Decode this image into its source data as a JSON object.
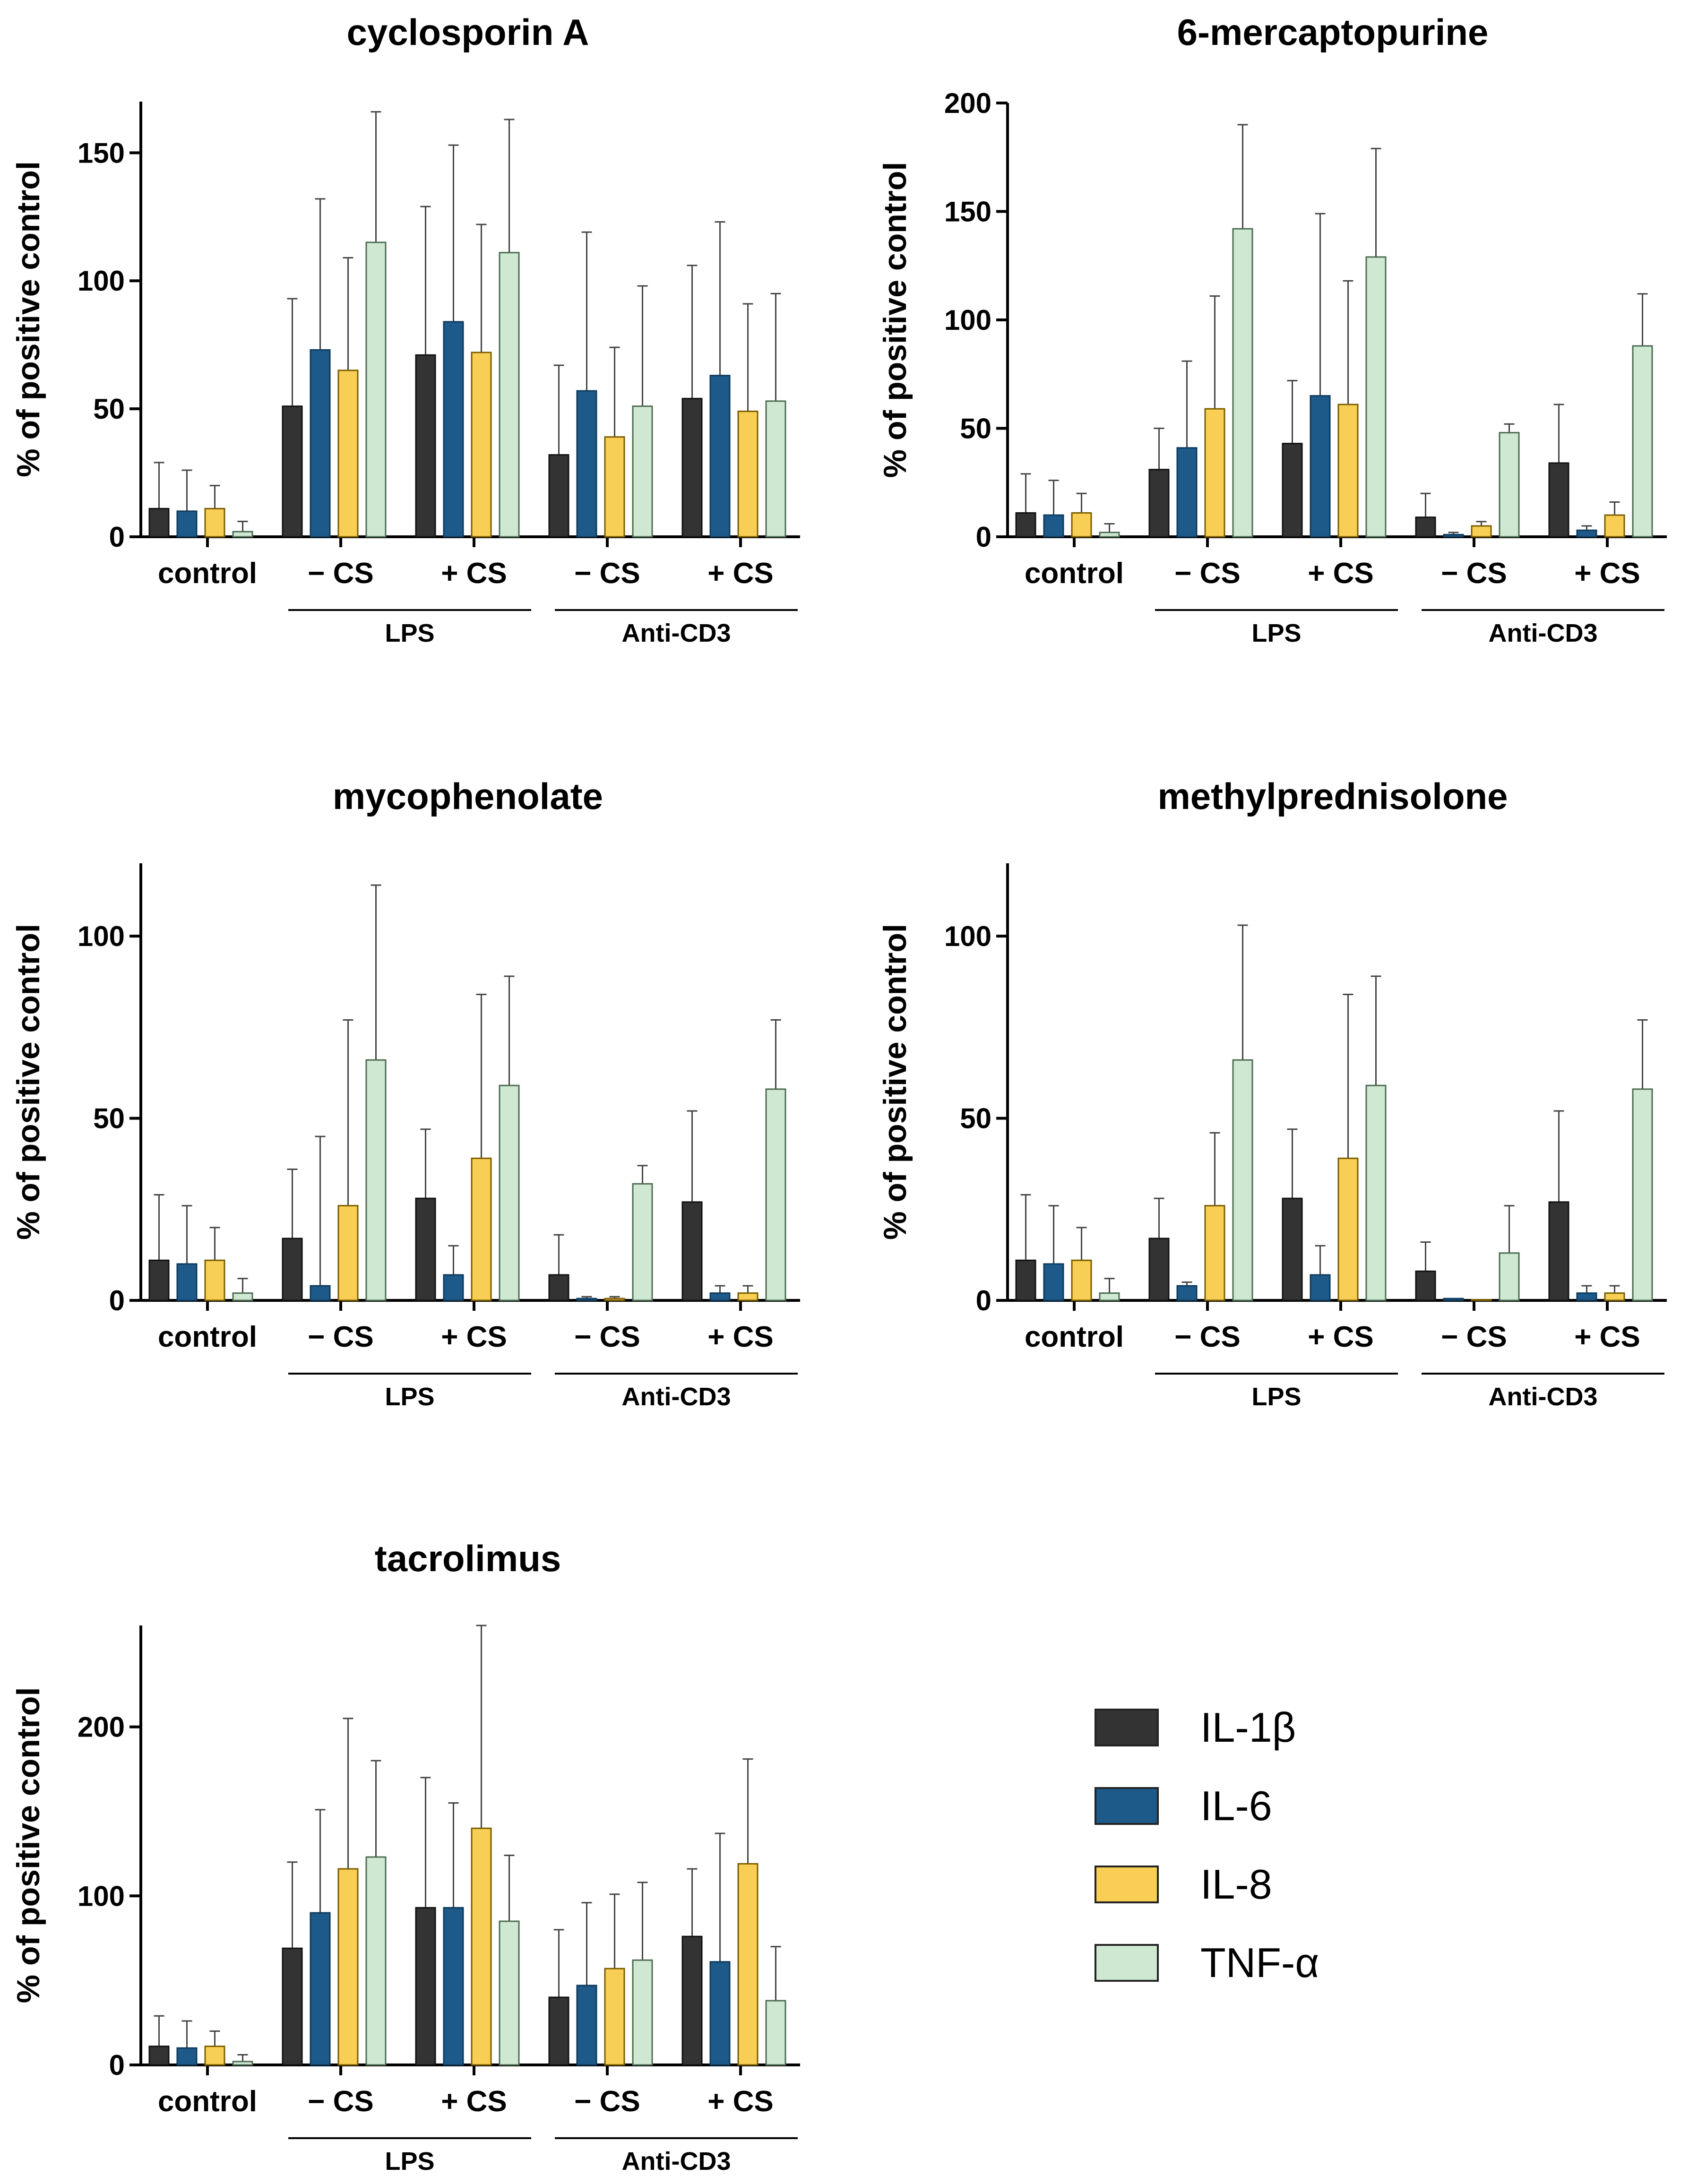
{
  "legend": {
    "items": [
      {
        "label": "IL-1β",
        "color": "#333333"
      },
      {
        "label": "IL-6",
        "color": "#1d5a8a"
      },
      {
        "label": "IL-8",
        "color": "#f8cf54"
      },
      {
        "label": "TNF-α",
        "color": "#cfe8d2"
      }
    ]
  },
  "chart_data": [
    {
      "type": "bar",
      "title": "cyclosporin  A",
      "ylabel": "% of positive control",
      "ylim": [
        0,
        170
      ],
      "yticks": [
        0,
        50,
        100,
        150
      ],
      "categories": [
        "control",
        "− CS",
        "+ CS",
        "− CS",
        "+ CS"
      ],
      "groups": [
        {
          "label": "LPS",
          "categories": [
            1,
            2
          ]
        },
        {
          "label": "Anti-CD3",
          "categories": [
            3,
            4
          ]
        }
      ],
      "series": [
        {
          "name": "IL-1β",
          "values": [
            11,
            51,
            71,
            32,
            54
          ],
          "errors": [
            18,
            42,
            58,
            35,
            52
          ]
        },
        {
          "name": "IL-6",
          "values": [
            10,
            73,
            84,
            57,
            63
          ],
          "errors": [
            16,
            59,
            69,
            62,
            60
          ]
        },
        {
          "name": "IL-8",
          "values": [
            11,
            65,
            72,
            39,
            49
          ],
          "errors": [
            9,
            44,
            50,
            35,
            42
          ]
        },
        {
          "name": "TNF-α",
          "values": [
            2,
            115,
            111,
            51,
            53
          ],
          "errors": [
            4,
            51,
            52,
            47,
            42
          ]
        }
      ]
    },
    {
      "type": "bar",
      "title": "6-mercaptopurine",
      "ylabel": "% of positive control",
      "ylim": [
        0,
        200
      ],
      "yticks": [
        0,
        50,
        100,
        150,
        200
      ],
      "categories": [
        "control",
        "− CS",
        "+ CS",
        "− CS",
        "+ CS"
      ],
      "groups": [
        {
          "label": "LPS",
          "categories": [
            1,
            2
          ]
        },
        {
          "label": "Anti-CD3",
          "categories": [
            3,
            4
          ]
        }
      ],
      "series": [
        {
          "name": "IL-1β",
          "values": [
            11,
            31,
            43,
            9,
            34
          ],
          "errors": [
            18,
            19,
            29,
            11,
            27
          ]
        },
        {
          "name": "IL-6",
          "values": [
            10,
            41,
            65,
            1,
            3
          ],
          "errors": [
            16,
            40,
            84,
            1,
            2
          ]
        },
        {
          "name": "IL-8",
          "values": [
            11,
            59,
            61,
            5,
            10
          ],
          "errors": [
            9,
            52,
            57,
            2,
            6
          ]
        },
        {
          "name": "TNF-α",
          "values": [
            2,
            142,
            129,
            48,
            88
          ],
          "errors": [
            4,
            48,
            50,
            4,
            24
          ]
        }
      ]
    },
    {
      "type": "bar",
      "title": "mycophenolate",
      "ylabel": "% of positive control",
      "ylim": [
        0,
        120
      ],
      "yticks": [
        0,
        50,
        100
      ],
      "categories": [
        "control",
        "− CS",
        "+ CS",
        "− CS",
        "+ CS"
      ],
      "groups": [
        {
          "label": "LPS",
          "categories": [
            1,
            2
          ]
        },
        {
          "label": "Anti-CD3",
          "categories": [
            3,
            4
          ]
        }
      ],
      "series": [
        {
          "name": "IL-1β",
          "values": [
            11,
            17,
            28,
            7,
            27
          ],
          "errors": [
            18,
            19,
            19,
            11,
            25
          ]
        },
        {
          "name": "IL-6",
          "values": [
            10,
            4,
            7,
            0.5,
            2
          ],
          "errors": [
            16,
            41,
            8,
            0.5,
            2
          ]
        },
        {
          "name": "IL-8",
          "values": [
            11,
            26,
            39,
            0.5,
            2
          ],
          "errors": [
            9,
            51,
            45,
            0.5,
            2
          ]
        },
        {
          "name": "TNF-α",
          "values": [
            2,
            66,
            59,
            32,
            58
          ],
          "errors": [
            4,
            48,
            30,
            5,
            19
          ]
        }
      ]
    },
    {
      "type": "bar",
      "title": "methylprednisolone",
      "ylabel": "% of positive control",
      "ylim": [
        0,
        120
      ],
      "yticks": [
        0,
        50,
        100
      ],
      "categories": [
        "control",
        "− CS",
        "+ CS",
        "− CS",
        "+ CS"
      ],
      "groups": [
        {
          "label": "LPS",
          "categories": [
            1,
            2
          ]
        },
        {
          "label": "Anti-CD3",
          "categories": [
            3,
            4
          ]
        }
      ],
      "series": [
        {
          "name": "IL-1β",
          "values": [
            11,
            17,
            28,
            8,
            27
          ],
          "errors": [
            18,
            11,
            19,
            8,
            25
          ]
        },
        {
          "name": "IL-6",
          "values": [
            10,
            4,
            7,
            0.5,
            2
          ],
          "errors": [
            16,
            1,
            8,
            0,
            2
          ]
        },
        {
          "name": "IL-8",
          "values": [
            11,
            26,
            39,
            0,
            2
          ],
          "errors": [
            9,
            20,
            45,
            0,
            2
          ]
        },
        {
          "name": "TNF-α",
          "values": [
            2,
            66,
            59,
            13,
            58
          ],
          "errors": [
            4,
            37,
            30,
            13,
            19
          ]
        }
      ]
    },
    {
      "type": "bar",
      "title": "tacrolimus",
      "ylabel": "% of positive control",
      "ylim": [
        0,
        260
      ],
      "yticks": [
        0,
        100,
        200
      ],
      "categories": [
        "control",
        "− CS",
        "+ CS",
        "− CS",
        "+ CS"
      ],
      "groups": [
        {
          "label": "LPS",
          "categories": [
            1,
            2
          ]
        },
        {
          "label": "Anti-CD3",
          "categories": [
            3,
            4
          ]
        }
      ],
      "series": [
        {
          "name": "IL-1β",
          "values": [
            11,
            69,
            93,
            40,
            76
          ],
          "errors": [
            18,
            51,
            77,
            40,
            40
          ]
        },
        {
          "name": "IL-6",
          "values": [
            10,
            90,
            93,
            47,
            61
          ],
          "errors": [
            16,
            61,
            62,
            49,
            76
          ]
        },
        {
          "name": "IL-8",
          "values": [
            11,
            116,
            140,
            57,
            119
          ],
          "errors": [
            9,
            89,
            120,
            44,
            62
          ]
        },
        {
          "name": "TNF-α",
          "values": [
            2,
            123,
            85,
            62,
            38
          ],
          "errors": [
            4,
            57,
            39,
            46,
            32
          ]
        }
      ]
    }
  ]
}
